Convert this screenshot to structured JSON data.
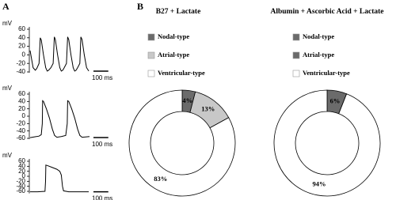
{
  "panel_labels": [
    "A",
    "B"
  ],
  "chart_data": [
    {
      "type": "line",
      "ylabel": "mV",
      "ylim": [
        -40,
        60
      ],
      "yticks": [
        60,
        40,
        20,
        0,
        -20,
        -40
      ],
      "xlim": [
        0,
        400
      ],
      "scale_bar": {
        "value": 100,
        "label": "100 ms"
      },
      "x": [
        0,
        20,
        35,
        45,
        60,
        68,
        75,
        90,
        105,
        115,
        125,
        140,
        155,
        163,
        170,
        185,
        200,
        210,
        220,
        230,
        245,
        253,
        260,
        275,
        290,
        300,
        310,
        320,
        335,
        342,
        350,
        365,
        380,
        395
      ],
      "series": [
        {
          "color": "#000000",
          "values": [
            10,
            -30,
            -36,
            -32,
            -20,
            40,
            35,
            0,
            -30,
            -38,
            -36,
            -30,
            -20,
            42,
            36,
            0,
            -30,
            -38,
            -36,
            -30,
            -20,
            42,
            36,
            0,
            -30,
            -38,
            -36,
            -30,
            -20,
            42,
            36,
            0,
            -30,
            -38
          ]
        }
      ]
    },
    {
      "type": "line",
      "ylabel": "mV",
      "ylim": [
        -60,
        60
      ],
      "yticks": [
        60,
        40,
        20,
        0,
        -20,
        -40,
        -60
      ],
      "xlim": [
        0,
        400
      ],
      "scale_bar": {
        "value": 100,
        "label": "100 ms"
      },
      "x": [
        0,
        30,
        60,
        75,
        82,
        84,
        90,
        110,
        130,
        150,
        165,
        180,
        210,
        240,
        250,
        253,
        260,
        280,
        300,
        320,
        335,
        350,
        380,
        400
      ],
      "series": [
        {
          "color": "#000000",
          "values": [
            -58,
            -56,
            -54,
            -50,
            -20,
            42,
            40,
            20,
            -5,
            -35,
            -52,
            -57,
            -55,
            -52,
            -20,
            42,
            40,
            20,
            -5,
            -35,
            -52,
            -57,
            -56,
            -55
          ]
        }
      ]
    },
    {
      "type": "line",
      "ylabel": "mV",
      "ylim": [
        -65,
        60
      ],
      "yticks": [
        60,
        40,
        20,
        0,
        -20,
        -40,
        -60
      ],
      "xlim": [
        0,
        400
      ],
      "scale_bar": {
        "value": 100,
        "label": "100 ms"
      },
      "x": [
        0,
        50,
        100,
        104,
        106,
        120,
        150,
        180,
        200,
        210,
        218,
        225,
        260,
        320,
        395
      ],
      "series": [
        {
          "color": "#000000",
          "values": [
            -62,
            -62,
            -60,
            -20,
            45,
            42,
            35,
            28,
            20,
            5,
            -40,
            -58,
            -62,
            -62,
            -62
          ]
        }
      ]
    },
    {
      "type": "pie",
      "donut": true,
      "title": "B27 + Lactate",
      "categories": [
        "Nodal-type",
        "Atrial-type",
        "Ventricular-type"
      ],
      "values": [
        4,
        13,
        83
      ],
      "value_labels": [
        "4%",
        "13%",
        "83%"
      ],
      "colors": [
        "#6b6b6b",
        "#c8c8c8",
        "#ffffff"
      ]
    },
    {
      "type": "pie",
      "donut": true,
      "title": "Albumin + Ascorbic Acid + Lactate",
      "categories": [
        "Nodal-type",
        "Atrial-type",
        "Ventricular-type"
      ],
      "values": [
        6,
        0,
        94
      ],
      "value_labels": [
        "6%",
        null,
        "94%"
      ],
      "colors": [
        "#6b6b6b",
        "#6b6b6b",
        "#ffffff"
      ]
    }
  ]
}
